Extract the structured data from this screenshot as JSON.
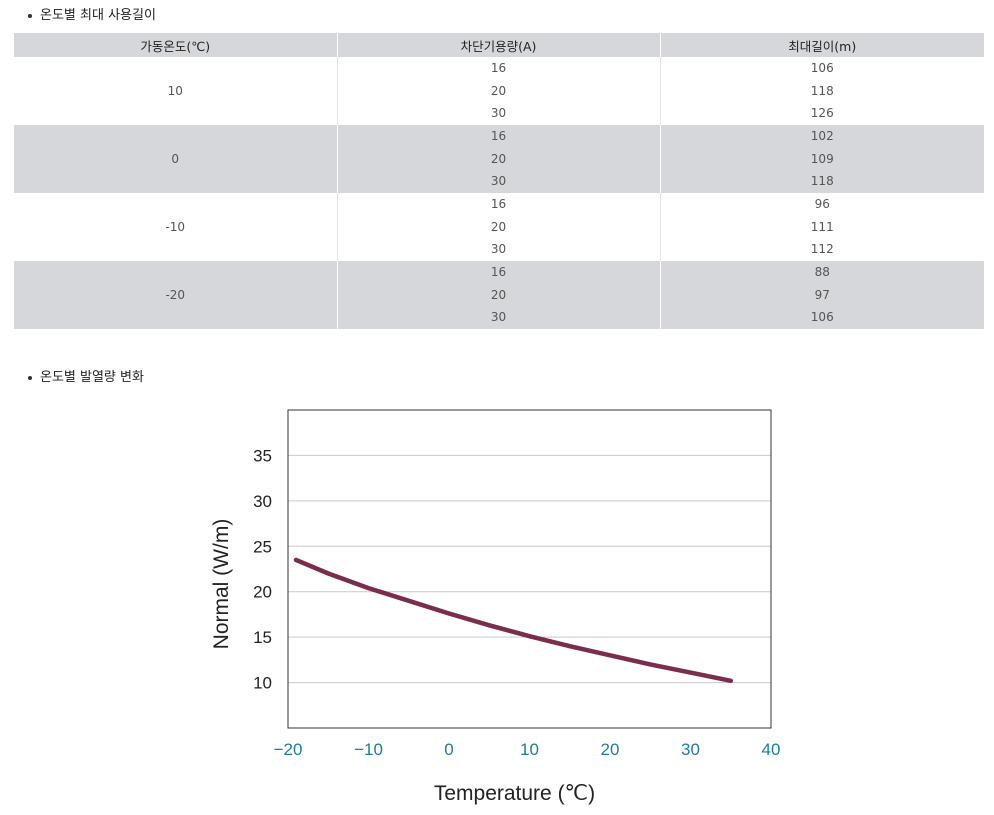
{
  "sections": {
    "table_title": "온도별 최대 사용길이",
    "chart_title": "온도별 발열량 변화"
  },
  "table": {
    "headers": [
      "가동온도(℃)",
      "차단기용량(A)",
      "최대길이(m)"
    ],
    "groups": [
      {
        "temp": "10",
        "breakers": [
          "16",
          "20",
          "30"
        ],
        "lengths": [
          "106",
          "118",
          "126"
        ]
      },
      {
        "temp": "0",
        "breakers": [
          "16",
          "20",
          "30"
        ],
        "lengths": [
          "102",
          "109",
          "118"
        ]
      },
      {
        "temp": "-10",
        "breakers": [
          "16",
          "20",
          "30"
        ],
        "lengths": [
          "96",
          "111",
          "112"
        ]
      },
      {
        "temp": "-20",
        "breakers": [
          "16",
          "20",
          "30"
        ],
        "lengths": [
          "88",
          "97",
          "106"
        ]
      }
    ]
  },
  "chart_data": {
    "type": "line",
    "title": "",
    "xlabel": "Temperature (℃)",
    "ylabel": "Normal (W/m)",
    "xlim": [
      -20,
      40
    ],
    "ylim": [
      5,
      40
    ],
    "xticks": [
      "−20",
      "−10",
      "0",
      "10",
      "20",
      "30",
      "40"
    ],
    "yticks": [
      "10",
      "15",
      "20",
      "25",
      "30",
      "35"
    ],
    "grid": "horizontal",
    "line_color": "#7b2d4e",
    "series": [
      {
        "x": [
          -19,
          -15,
          -10,
          -5,
          0,
          5,
          10,
          15,
          20,
          25,
          30,
          35
        ],
        "y": [
          23.5,
          22.0,
          20.4,
          19.0,
          17.6,
          16.3,
          15.1,
          14.0,
          13.0,
          12.0,
          11.1,
          10.2
        ]
      }
    ]
  }
}
